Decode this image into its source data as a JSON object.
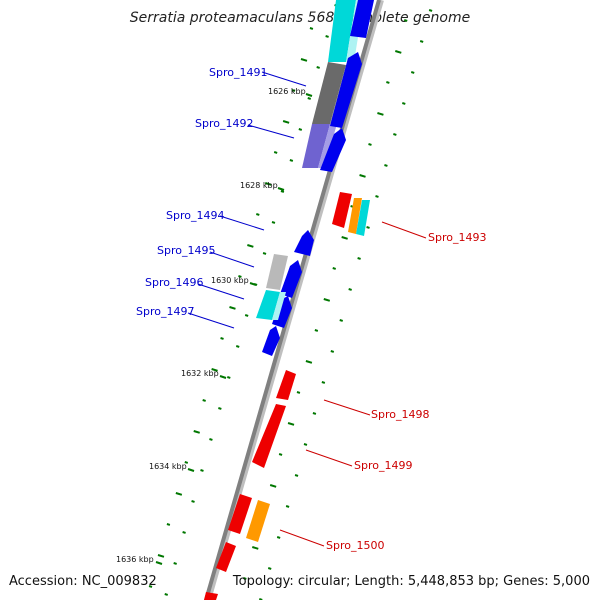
{
  "title": "Serratia proteamaculans 568, complete genome",
  "accession": "Accession: NC_009832",
  "summary": "Topology: circular; Length: 5,448,853 bp; Genes: 5,000",
  "colors": {
    "backbone": "#7f7f7f",
    "forward_label": "#0000cc",
    "reverse_label": "#cc0000",
    "cds_blue": "#0000ee",
    "cds_red": "#ee0000",
    "orange": "#ff9900",
    "cyan": "#00dddd",
    "grey": "#6e6e6e",
    "light_grey": "#bbbbbb",
    "purple": "#7a6fd6",
    "ticks_green": "#007700"
  },
  "kbp_ticks": [
    "1626 kbp",
    "1628 kbp",
    "1630 kbp",
    "1632 kbp",
    "1634 kbp",
    "1636 kbp"
  ],
  "gene_labels_forward": [
    "Spro_1491",
    "Spro_1492",
    "Spro_1494",
    "Spro_1495",
    "Spro_1496",
    "Spro_1497"
  ],
  "gene_labels_reverse": [
    "Spro_1493",
    "Spro_1498",
    "Spro_1499",
    "Spro_1500"
  ]
}
